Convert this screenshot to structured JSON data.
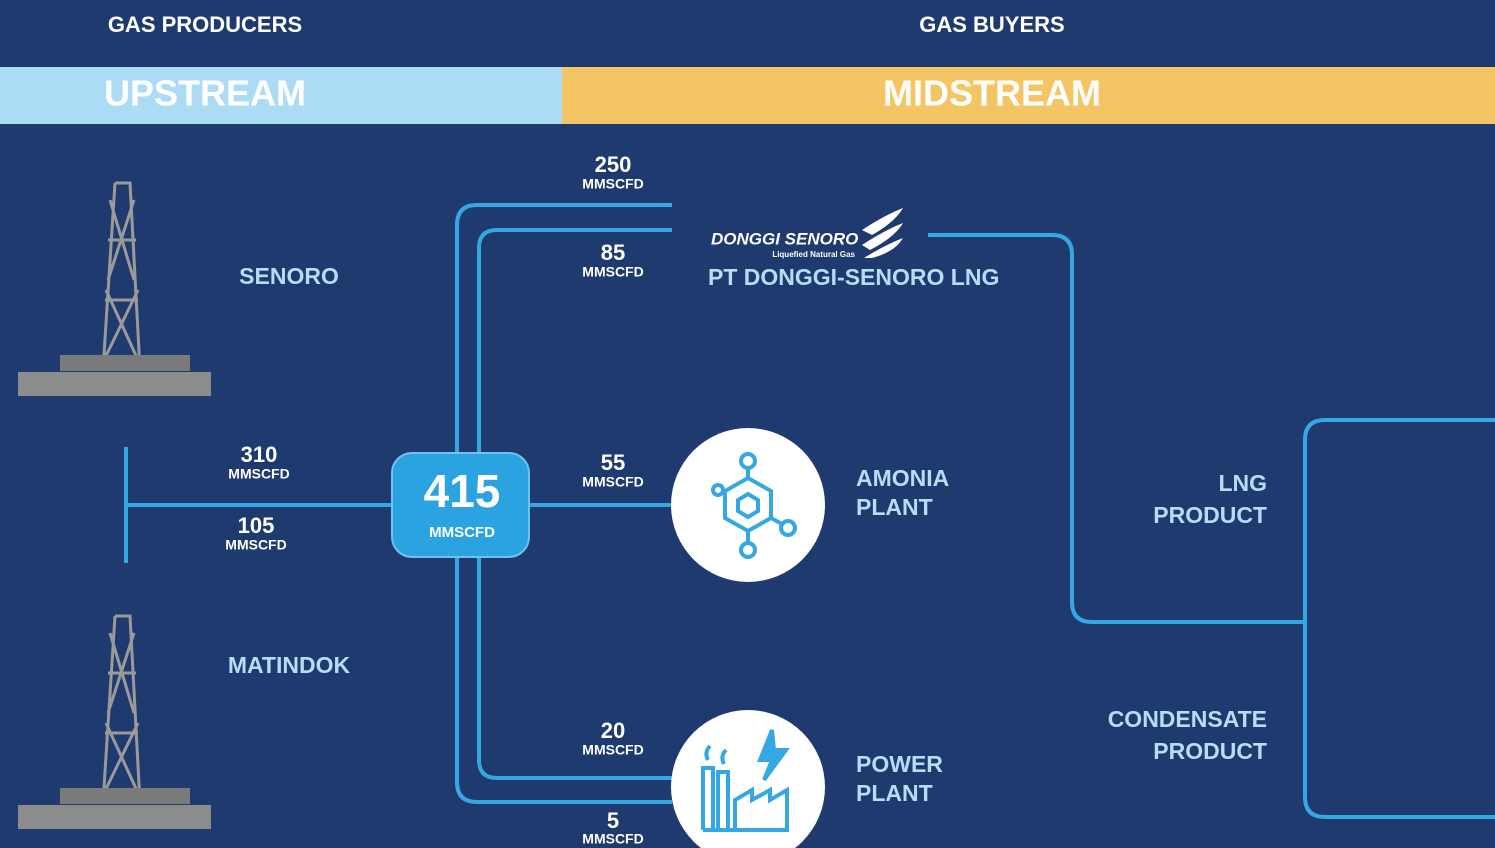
{
  "header": {
    "producers": "GAS PRODUCERS",
    "buyers": "GAS BUYERS"
  },
  "bands": {
    "upstream": "UPSTREAM",
    "midstream": "MIDSTREAM"
  },
  "sources": [
    {
      "name": "SENORO"
    },
    {
      "name": "MATINDOK"
    }
  ],
  "hub": {
    "value": 415,
    "unit": "MMSCFD"
  },
  "flows": [
    {
      "value": 250,
      "unit": "MMSCFD"
    },
    {
      "value": 85,
      "unit": "MMSCFD"
    },
    {
      "value": 310,
      "unit": "MMSCFD"
    },
    {
      "value": 105,
      "unit": "MMSCFD"
    },
    {
      "value": 55,
      "unit": "MMSCFD"
    },
    {
      "value": 20,
      "unit": "MMSCFD"
    },
    {
      "value": 5,
      "unit": "MMSCFD"
    }
  ],
  "buyers": {
    "lng": {
      "logo": "DONGGI SENORO",
      "logo_sub": "Liquefied Natural Gas",
      "name": "PT DONGGI-SENORO LNG"
    },
    "amonia": {
      "lines": [
        "AMONIA",
        "PLANT"
      ]
    },
    "power": {
      "lines": [
        "POWER",
        "PLANT"
      ]
    }
  },
  "products": [
    {
      "lines": [
        "LNG",
        "PRODUCT"
      ]
    },
    {
      "lines": [
        "CONDENSATE",
        "PRODUCT"
      ]
    }
  ]
}
